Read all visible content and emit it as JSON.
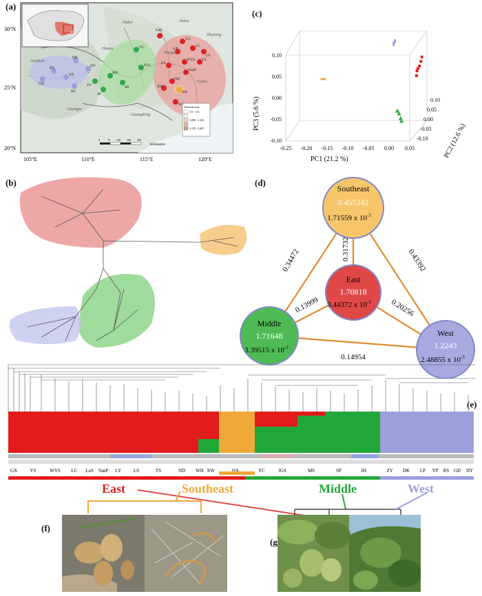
{
  "panels": {
    "a": "(a)",
    "b": "(b)",
    "c": "(c)",
    "d": "(d)",
    "e": "(e)",
    "f": "(f)",
    "g": "(g)"
  },
  "map": {
    "lat_labels": [
      "30°N",
      "25°N",
      "20°N"
    ],
    "lon_labels": [
      "105°E",
      "110°E",
      "115°E",
      "120°E"
    ],
    "provinces": [
      "Hubei",
      "Anhui",
      "Hunan",
      "Zhejiang",
      "Jiangxi",
      "Guizhou",
      "Fujian",
      "Guangxi",
      "Guangdong"
    ],
    "sites_east": [
      "LuS",
      "YS",
      "GX",
      "LC",
      "WYS",
      "LY",
      "YanP",
      "TS",
      "ND",
      "XW",
      "WH",
      "LS"
    ],
    "sites_west": [
      "DK",
      "BY",
      "YP",
      "GD",
      "RS",
      "DY"
    ],
    "sites_middle": [
      "YC",
      "JGS",
      "MS",
      "JH",
      "SP",
      "ZY"
    ],
    "sites_southeast": [
      "HA"
    ],
    "scale_label": "Kilometers",
    "scale_ticks": [
      "0",
      "75",
      "150",
      "300",
      "450"
    ],
    "legend_title": "Altitude (m)",
    "legend_items": [
      "-81 - 115",
      "-",
      "1,000 - 2,165",
      "-",
      "3,118 - 4,401"
    ],
    "colors": {
      "east": "#dd2222",
      "southeast": "#f0a838",
      "middle": "#2ea84a",
      "west": "#9aa0dc"
    }
  },
  "chart_data": {
    "type": "scatter",
    "title": "",
    "xlabel": "PC1 (21.2 %)",
    "ylabel": "PC2 (12.6 %)",
    "zlabel": "PC3 (5.6 %)",
    "xticks": [
      "-0.25",
      "-0.20",
      "-0.15",
      "-0.10",
      "-0.05",
      "0.00",
      "0.05"
    ],
    "yticks": [
      "0.10",
      "0.05",
      "0.00",
      "-0.05",
      "-0.10"
    ],
    "zticks": [
      "0.10",
      "0.05",
      "0.00",
      "-0.05",
      "-0.10"
    ],
    "series": [
      {
        "name": "East",
        "color": "#dd2222",
        "points": [
          [
            0.03,
            0.08,
            0.02
          ],
          [
            0.035,
            0.085,
            0.03
          ],
          [
            0.04,
            0.09,
            0.05
          ],
          [
            0.03,
            0.075,
            0.01
          ],
          [
            0.038,
            0.088,
            0.04
          ],
          [
            0.032,
            0.082,
            0.025
          ]
        ]
      },
      {
        "name": "Southeast",
        "color": "#f0a838",
        "points": [
          [
            -0.18,
            0.0,
            0.02
          ]
        ]
      },
      {
        "name": "Middle",
        "color": "#2ea84a",
        "points": [
          [
            0.02,
            -0.08,
            -0.04
          ],
          [
            0.025,
            -0.085,
            -0.05
          ],
          [
            0.015,
            -0.075,
            -0.035
          ],
          [
            0.028,
            -0.09,
            -0.055
          ]
        ]
      },
      {
        "name": "West",
        "color": "#9aa0dc",
        "points": [
          [
            -0.02,
            0.05,
            0.09
          ],
          [
            -0.018,
            0.055,
            0.095
          ]
        ]
      }
    ]
  },
  "network": {
    "nodes": [
      {
        "name": "Southeast",
        "value1": "0.455342",
        "value2": "1.71559 x 10",
        "exp": "-3"
      },
      {
        "name": "East",
        "value1": "1.70818",
        "value2": "3.44372 x 10",
        "exp": "-3"
      },
      {
        "name": "Middle",
        "value1": "1.71648",
        "value2": "3.39515 x 10",
        "exp": "-3"
      },
      {
        "name": "West",
        "value1": "1.2243",
        "value2": "2.48855 x 10",
        "exp": "-3"
      }
    ],
    "edges": {
      "se_east": "0.31732",
      "se_middle": "0.34472",
      "se_west": "0.43392",
      "east_middle": "0.13999",
      "east_west": "0.20256",
      "middle_west": "0.14954"
    }
  },
  "structure": {
    "pop_labels": [
      "GX",
      "YS",
      "WYS",
      "LC",
      "LuS",
      "YanP",
      "LY",
      "LS",
      "TS",
      "ND",
      "WH",
      "XW",
      "HA",
      "YC",
      "JGS",
      "MS",
      "SP",
      "JH",
      "ZY",
      "DK",
      "LP",
      "YP",
      "RS",
      "GD",
      "DY"
    ],
    "groups": [
      "East",
      "Southeast",
      "Middle",
      "West"
    ]
  },
  "photos": {
    "f": "(f)",
    "g": "(g)"
  }
}
